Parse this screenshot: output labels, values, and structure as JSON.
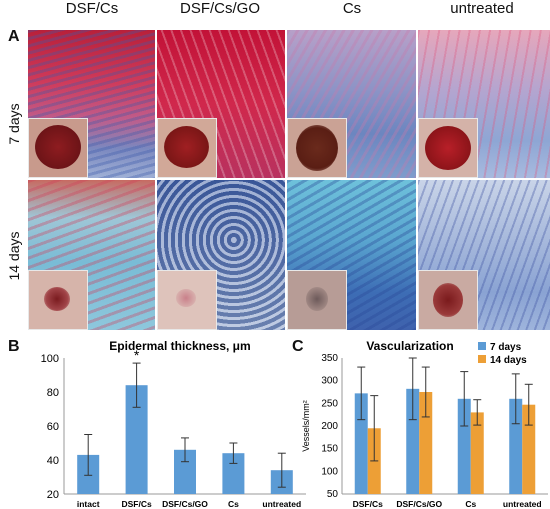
{
  "panel_a": {
    "label": "A",
    "columns": [
      "DSF/Cs",
      "DSF/Cs/GO",
      "Cs",
      "untreated"
    ],
    "rows": [
      "7 days",
      "14 days"
    ]
  },
  "chart_data": [
    {
      "panel_label": "B",
      "type": "bar",
      "title": "Epidermal thickness, μm",
      "categories": [
        "intact",
        "DSF/Cs",
        "DSF/Cs/GO",
        "Cs",
        "untreated"
      ],
      "values": [
        43,
        84,
        46,
        44,
        34
      ],
      "errors": [
        12,
        13,
        7,
        6,
        10
      ],
      "ylim": [
        20,
        100
      ],
      "yticks": [
        20,
        40,
        60,
        80,
        100
      ],
      "xlabel": "",
      "ylabel": "",
      "annotation": "*",
      "bar_color": "#5b9bd5"
    },
    {
      "panel_label": "C",
      "type": "bar",
      "title": "Vascularization",
      "ylabel": "Vessels/mm²",
      "categories": [
        "DSF/Cs",
        "DSF/Cs/GO",
        "Cs",
        "untreated"
      ],
      "series": [
        {
          "name": "7 days",
          "values": [
            272,
            282,
            260,
            260
          ],
          "errors": [
            58,
            68,
            60,
            55
          ],
          "color": "#5b9bd5"
        },
        {
          "name": "14 days",
          "values": [
            195,
            275,
            230,
            247
          ],
          "errors": [
            72,
            55,
            28,
            45
          ],
          "color": "#ed9f36"
        }
      ],
      "ylim": [
        50,
        350
      ],
      "yticks": [
        50,
        100,
        150,
        200,
        250,
        300,
        350
      ],
      "legend": "top-right"
    }
  ]
}
